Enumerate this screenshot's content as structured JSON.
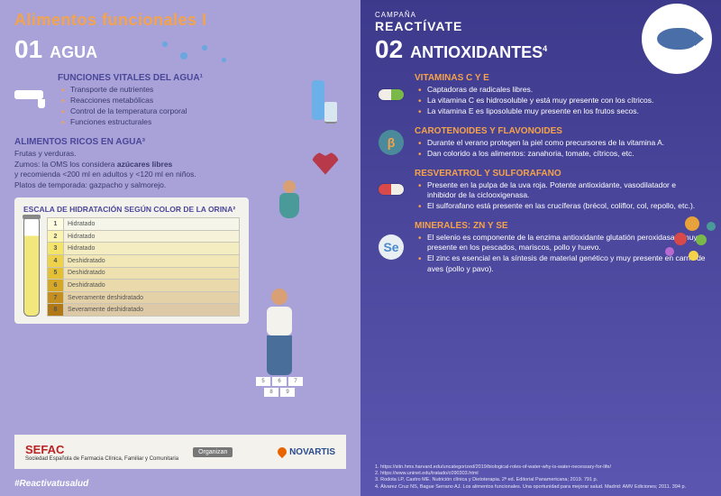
{
  "mainTitle": "Alimentos funcionales I",
  "campaign": {
    "label": "CAMPAÑA",
    "name": "REACTÍVATE"
  },
  "left": {
    "num": "01",
    "title": "AGUA",
    "vital": {
      "heading": "FUNCIONES VITALES DEL AGUA¹",
      "items": [
        "Transporte de nutrientes",
        "Reacciones metabólicas",
        "Control de la temperatura corporal",
        "Funciones estructurales"
      ]
    },
    "rich": {
      "heading": "ALIMENTOS RICOS EN AGUA³",
      "p1": "Frutas y verduras.",
      "p2a": "Zumos: la OMS los considera ",
      "p2b": "azúcares libres",
      "p3": "y recomienda <200 ml en adultos y <120 ml en niños.",
      "p4": "Platos de temporada: gazpacho y salmorejo."
    },
    "scale": {
      "title": "ESCALA DE HIDRATACIÓN SEGÚN COLOR DE LA ORINA²",
      "rows": [
        {
          "n": "1",
          "label": "Hidratado",
          "color": "#fdfbe0"
        },
        {
          "n": "2",
          "label": "Hidratado",
          "color": "#fbf4b0"
        },
        {
          "n": "3",
          "label": "Hidratado",
          "color": "#f4e46a"
        },
        {
          "n": "4",
          "label": "Deshidratado",
          "color": "#edd24a"
        },
        {
          "n": "5",
          "label": "Deshidratado",
          "color": "#e3c034"
        },
        {
          "n": "6",
          "label": "Deshidratado",
          "color": "#d6a828"
        },
        {
          "n": "7",
          "label": "Severamente deshidratado",
          "color": "#c58f1f"
        },
        {
          "n": "8",
          "label": "Severamente deshidratado",
          "color": "#b07816"
        }
      ]
    }
  },
  "right": {
    "num": "02",
    "title": "ANTIOXIDANTES",
    "sup": "4",
    "groups": [
      {
        "heading": "VITAMINAS C Y E",
        "icon": {
          "type": "pill",
          "c1": "#f0eee6",
          "c2": "#7ab84a"
        },
        "items": [
          "Captadoras de radicales libres.",
          "La vitamina C es hidrosoluble y está muy presente con los cítricos.",
          "La vitamina E es liposoluble muy presente en los frutos secos."
        ]
      },
      {
        "heading": "CAROTENOIDES Y FLAVONOIDES",
        "icon": {
          "type": "circle",
          "bg": "#4a8a9a",
          "text": "β",
          "fg": "#f5a24a"
        },
        "items": [
          "Durante el verano protegen la piel como precursores de la vitamina A.",
          "Dan colorido a los alimentos: zanahoria, tomate, cítricos, etc."
        ]
      },
      {
        "heading": "RESVERATROL Y SULFORAFANO",
        "icon": {
          "type": "pill",
          "c1": "#d84a4a",
          "c2": "#f0eee6"
        },
        "items": [
          "Presente en la pulpa de la uva roja. Potente antioxidante, vasodilatador e inhibidor de la ciclooxigenasa.",
          "El sulforafano está presente en las crucíferas (brécol, coliflor, col, repollo, etc.)."
        ]
      },
      {
        "heading": "MINERALES: ZN Y SE",
        "icon": {
          "type": "circle",
          "bg": "#e8eef2",
          "text": "Se",
          "fg": "#4a8aca"
        },
        "items": [
          "El selenio es componente de la enzima antioxidante glutatión peroxidasa y muy presente en los pescados, mariscos, pollo y huevo.",
          "El zinc es esencial en la síntesis de material genético y muy presente en carne de aves (pollo y pavo)."
        ]
      }
    ]
  },
  "footer": {
    "sefac": "SEFAC",
    "sefacSub": "Sociedad Española de Farmacia Clínica, Familiar y Comunitaria",
    "organizer": "Organizan",
    "novartis": "NOVARTIS"
  },
  "hashtag": "#Reactivatusalud",
  "refs": [
    "1. https://sitn.hms.harvard.edu/uncategorized/2019/biological-roles-of-water-why-is-water-necessary-for-life/",
    "2. https://www.uninet.edu/tratado/c090303.html",
    "3. Rodota LP, Castro ME. Nutrición clínica y Dietoterapia. 2ª ed. Editorial Panamericana; 2019. 791 p.",
    "4. Álvarez Cruz NS, Bague Serrano AJ. Los alimentos funcionales. Una oportunidad para mejorar salud. Madrid: AMV Ediciones; 2011. 394 p."
  ]
}
